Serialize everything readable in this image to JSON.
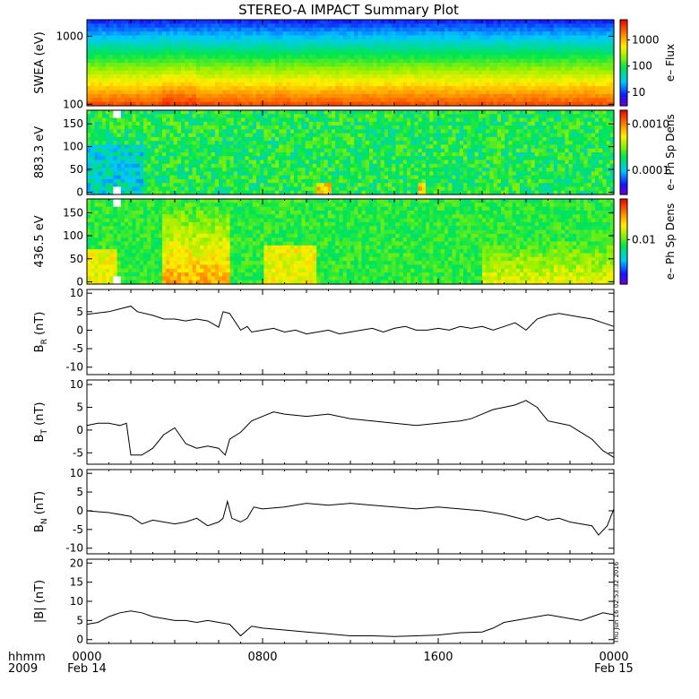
{
  "title": "STEREO-A IMPACT Summary Plot",
  "timestamp": "Thu Jun 16 02:53:32 2016",
  "x_axis": {
    "label_row1": "hhmm",
    "label_row2": "2009",
    "ticks": [
      {
        "t": 0,
        "time": "0000",
        "date": "Feb 14"
      },
      {
        "t": 8,
        "time": "0800",
        "date": ""
      },
      {
        "t": 16,
        "time": "1600",
        "date": ""
      },
      {
        "t": 24,
        "time": "0000",
        "date": "Feb 15"
      }
    ],
    "range_hours": [
      0,
      24
    ]
  },
  "colors": {
    "line": "#000000",
    "frame": "#000000",
    "background": "#ffffff"
  },
  "chart_data": [
    {
      "type": "heatmap",
      "ylabel": "SWEA (eV)",
      "yscale": "log",
      "ylim": [
        95,
        1750
      ],
      "yticks": [
        {
          "v": 1000,
          "label": "1000"
        },
        {
          "v": 100,
          "label": "100"
        }
      ],
      "colorbar": {
        "label": "e– Flux",
        "scale": "log",
        "range": [
          3,
          6000
        ],
        "ticks": [
          {
            "v": 10,
            "label": "10"
          },
          {
            "v": 100,
            "label": "100"
          },
          {
            "v": 1000,
            "label": "1000"
          }
        ]
      },
      "description_values": {
        "flux_at_100eV": 4000,
        "flux_at_300eV": 400,
        "flux_at_1000eV": 12,
        "flux_at_1700eV": 3
      }
    },
    {
      "type": "heatmap",
      "ylabel": "883.3 eV",
      "ylim": [
        -5,
        180
      ],
      "yticks": [
        {
          "v": 0,
          "label": "0"
        },
        {
          "v": 50,
          "label": "50"
        },
        {
          "v": 100,
          "label": "100"
        },
        {
          "v": 150,
          "label": "150"
        }
      ],
      "colorbar": {
        "label": "e– Ph Sp Dens",
        "scale": "log",
        "range": [
          3e-05,
          0.002
        ],
        "ticks": [
          {
            "v": 0.0001,
            "label": "0.0001"
          },
          {
            "v": 0.001,
            "label": "0.0010"
          }
        ]
      },
      "data_gap_hours": [
        1.2,
        1.5
      ]
    },
    {
      "type": "heatmap",
      "ylabel": "436.5 eV",
      "ylim": [
        -5,
        180
      ],
      "yticks": [
        {
          "v": 0,
          "label": "0"
        },
        {
          "v": 50,
          "label": "50"
        },
        {
          "v": 100,
          "label": "100"
        },
        {
          "v": 150,
          "label": "150"
        }
      ],
      "colorbar": {
        "label": "e– Ph Sp Dens",
        "scale": "log",
        "range": [
          0.003,
          0.03
        ],
        "ticks": [
          {
            "v": 0.01,
            "label": "0.01"
          }
        ]
      },
      "data_gap_hours": [
        1.2,
        1.5
      ]
    },
    {
      "type": "line",
      "ylabel_main": "B",
      "ylabel_sub": "R",
      "ylabel_unit": " (nT)",
      "ylim": [
        -12,
        11
      ],
      "yticks": [
        {
          "v": 10,
          "label": "10"
        },
        {
          "v": 5,
          "label": "5"
        },
        {
          "v": 0,
          "label": "0"
        },
        {
          "v": -5,
          "label": "-5"
        },
        {
          "v": -10,
          "label": "-10"
        }
      ],
      "x": [
        0,
        1,
        2,
        2.3,
        3,
        3.5,
        4,
        4.5,
        5,
        5.5,
        6,
        6.2,
        6.5,
        7,
        7.3,
        7.5,
        8,
        8.5,
        9,
        9.5,
        10,
        10.5,
        11,
        11.5,
        12,
        12.5,
        13,
        13.5,
        14,
        14.5,
        15,
        15.5,
        16,
        16.5,
        17,
        17.5,
        18,
        18.5,
        19,
        19.5,
        20,
        20.5,
        21,
        21.5,
        22,
        22.5,
        23,
        23.5,
        24
      ],
      "y": [
        4.3,
        5,
        6.5,
        5,
        4,
        3,
        3,
        2.5,
        3,
        2.5,
        0.8,
        5,
        4.5,
        0,
        1,
        -0.5,
        0,
        0.5,
        -0.5,
        0,
        -1,
        -0.5,
        0,
        -1,
        -0.5,
        0,
        0.5,
        -0.5,
        0.5,
        1,
        0,
        0,
        0.5,
        0,
        1,
        0.5,
        1,
        0,
        1,
        2,
        0,
        3,
        4,
        4.5,
        4,
        3.5,
        3,
        2,
        1
      ]
    },
    {
      "type": "line",
      "ylabel_main": "B",
      "ylabel_sub": "T",
      "ylabel_unit": " (nT)",
      "ylim": [
        -7.5,
        11
      ],
      "yticks": [
        {
          "v": 10,
          "label": "10"
        },
        {
          "v": 5,
          "label": "5"
        },
        {
          "v": 0,
          "label": "0"
        },
        {
          "v": -5,
          "label": "-5"
        }
      ],
      "x": [
        0,
        0.5,
        1,
        1.5,
        1.8,
        2,
        2.5,
        3,
        3.5,
        4,
        4.5,
        5,
        5.5,
        6,
        6.3,
        6.5,
        7,
        7.5,
        8,
        8.5,
        9,
        10,
        11,
        12,
        13,
        14,
        15,
        16,
        17,
        17.5,
        18,
        18.5,
        19,
        19.5,
        20,
        20.5,
        21,
        21.5,
        22,
        22.5,
        23,
        23.5,
        24
      ],
      "y": [
        1,
        1.5,
        1.5,
        1,
        1.5,
        -5.5,
        -5.5,
        -4,
        -1,
        0.5,
        -3,
        -4,
        -3.5,
        -4,
        -5.5,
        -2,
        -0.5,
        2,
        3,
        4,
        3.5,
        3,
        3.5,
        2.5,
        2,
        1.5,
        1,
        1.5,
        2,
        2.5,
        3.5,
        4.5,
        5,
        5.5,
        6.5,
        5,
        2,
        1.5,
        1,
        -0.5,
        -2,
        -4.5,
        -6
      ]
    },
    {
      "type": "line",
      "ylabel_main": "B",
      "ylabel_sub": "N",
      "ylabel_unit": " (nT)",
      "ylim": [
        -11.5,
        11
      ],
      "yticks": [
        {
          "v": 10,
          "label": "10"
        },
        {
          "v": 5,
          "label": "5"
        },
        {
          "v": 0,
          "label": "0"
        },
        {
          "v": -5,
          "label": "-5"
        },
        {
          "v": -10,
          "label": "-10"
        }
      ],
      "x": [
        0,
        1,
        2,
        2.5,
        3,
        3.5,
        4,
        4.5,
        5,
        5.5,
        6,
        6.2,
        6.4,
        6.6,
        7,
        7.3,
        7.6,
        8,
        9,
        10,
        11,
        12,
        13,
        14,
        15,
        16,
        17,
        18,
        19,
        20,
        20.5,
        21,
        21.5,
        22,
        22.5,
        23,
        23.3,
        23.7,
        24
      ],
      "y": [
        0,
        -0.5,
        -1.5,
        -3.5,
        -2.5,
        -3,
        -3.5,
        -3,
        -2,
        -4,
        -3,
        -2,
        2.5,
        -2,
        -3,
        -2,
        1,
        0.5,
        1,
        2,
        1.5,
        2,
        1.5,
        1,
        0.5,
        1,
        0.5,
        0,
        -1,
        -2.5,
        -1.5,
        -2.5,
        -2,
        -3,
        -3.5,
        -4,
        -6.5,
        -4,
        0.5
      ]
    },
    {
      "type": "line",
      "ylabel_main": "|B|",
      "ylabel_sub": "",
      "ylabel_unit": " (nT)",
      "ylim": [
        -1,
        21
      ],
      "yticks": [
        {
          "v": 20,
          "label": "20"
        },
        {
          "v": 15,
          "label": "15"
        },
        {
          "v": 10,
          "label": "10"
        },
        {
          "v": 5,
          "label": "5"
        },
        {
          "v": 0,
          "label": "0"
        }
      ],
      "x": [
        0,
        0.5,
        1,
        1.5,
        2,
        2.5,
        3,
        3.5,
        4,
        4.5,
        5,
        5.5,
        6,
        6.5,
        7,
        7.5,
        8,
        9,
        10,
        11,
        12,
        13,
        14,
        15,
        16,
        17,
        18,
        18.5,
        19,
        19.5,
        20,
        20.5,
        21,
        21.5,
        22,
        22.5,
        23,
        23.5,
        24
      ],
      "y": [
        4,
        4.5,
        6,
        7,
        7.5,
        7,
        6,
        5.5,
        5,
        5,
        4.5,
        5,
        4.5,
        4,
        1,
        3.5,
        3,
        2.5,
        2,
        1.5,
        1,
        1,
        0.8,
        1,
        1.2,
        1.8,
        2,
        3,
        4.5,
        5,
        5.5,
        6,
        6.5,
        6,
        5.5,
        5,
        6,
        7,
        6.5
      ]
    }
  ]
}
